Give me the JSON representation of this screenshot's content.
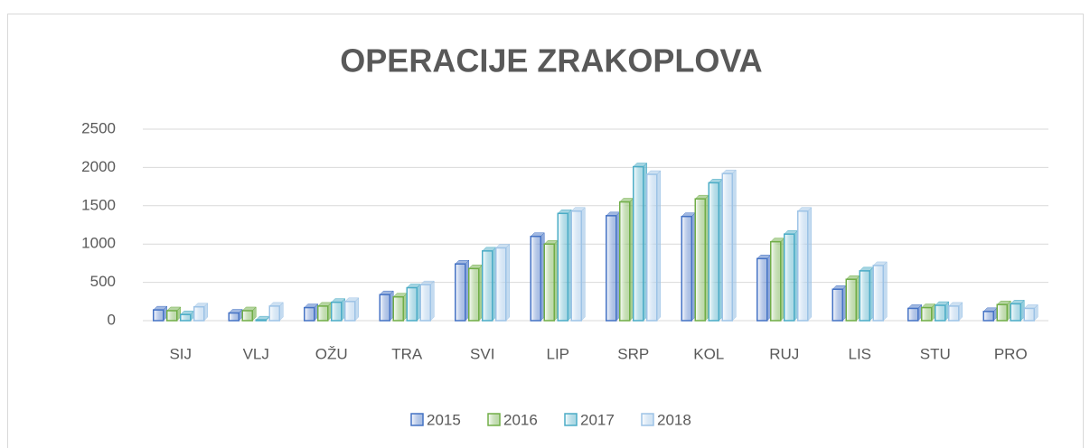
{
  "chart_data": {
    "type": "bar",
    "title": "OPERACIJE ZRAKOPLOVA",
    "categories": [
      "SIJ",
      "VLJ",
      "OŽU",
      "TRA",
      "SVI",
      "LIP",
      "SRP",
      "KOL",
      "RUJ",
      "LIS",
      "STU",
      "PRO"
    ],
    "series": [
      {
        "name": "2015",
        "color": "#4472c4",
        "values": [
          140,
          100,
          170,
          340,
          740,
          1100,
          1370,
          1360,
          810,
          410,
          160,
          120
        ]
      },
      {
        "name": "2016",
        "color": "#70ad47",
        "values": [
          130,
          130,
          190,
          310,
          680,
          1000,
          1550,
          1590,
          1030,
          540,
          170,
          210
        ]
      },
      {
        "name": "2017",
        "color": "#4bacc6",
        "values": [
          80,
          10,
          240,
          430,
          910,
          1400,
          2010,
          1800,
          1130,
          650,
          200,
          220
        ]
      },
      {
        "name": "2018",
        "color": "#9dc3e6",
        "values": [
          180,
          190,
          250,
          470,
          950,
          1430,
          1910,
          1920,
          1430,
          720,
          190,
          160
        ]
      }
    ],
    "ylim": [
      0,
      2500
    ],
    "yticks": [
      0,
      500,
      1000,
      1500,
      2000,
      2500
    ],
    "grid": true,
    "legend": "bottom"
  }
}
